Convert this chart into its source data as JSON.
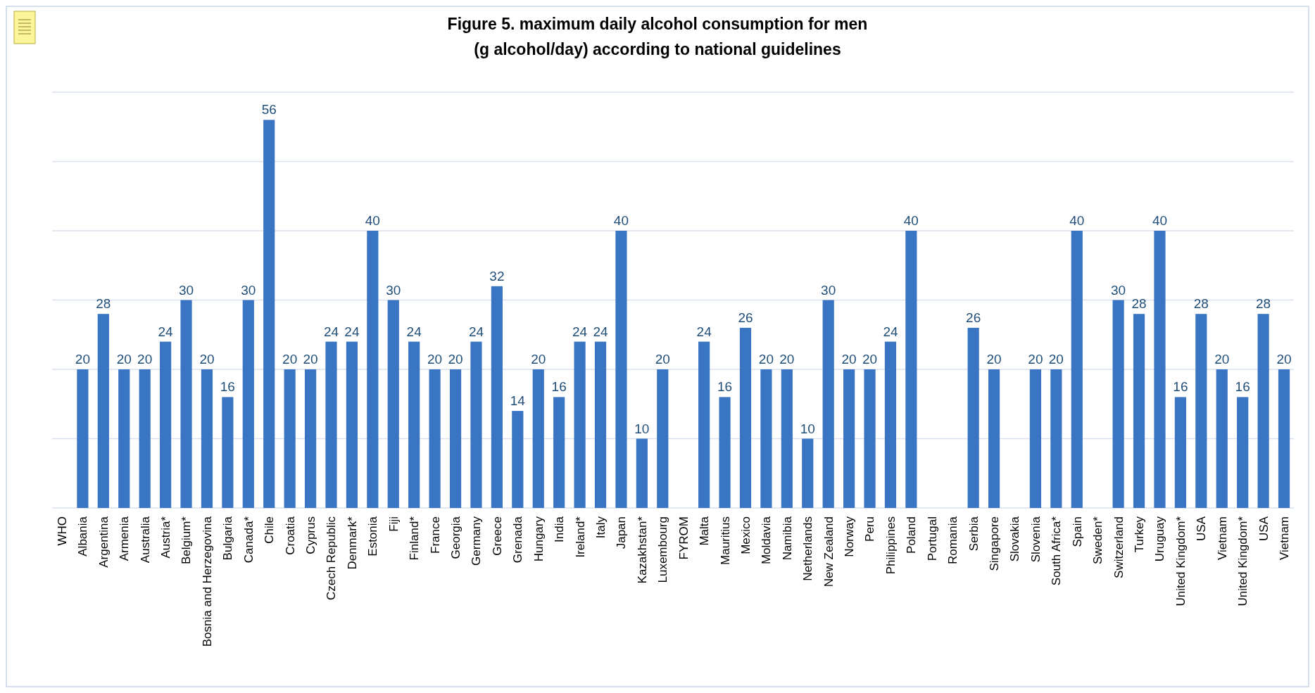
{
  "chart_data": {
    "type": "bar",
    "title": "Figure 5. maximum daily alcohol consumption for men\n(g alcohol/day) according to national guidelines",
    "categories": [
      "WHO",
      "Albania",
      "Argentina",
      "Armenia",
      "Australia",
      "Austria*",
      "Belgium*",
      "Bosnia and Herzegovina",
      "Bulgaria",
      "Canada*",
      "Chile",
      "Croatia",
      "Cyprus",
      "Czech Republic",
      "Denmark*",
      "Estonia",
      "Fiji",
      "Finland*",
      "France",
      "Georgia",
      "Germany",
      "Greece",
      "Grenada",
      "Hungary",
      "India",
      "Ireland*",
      "Italy",
      "Japan",
      "Kazakhstan*",
      "Luxembourg",
      "FYROM",
      "Malta",
      "Mauritius",
      "Mexico",
      "Moldavia",
      "Namibia",
      "Netherlands",
      "New Zealand",
      "Norway",
      "Peru",
      "Philippines",
      "Poland",
      "Portugal",
      "Romania",
      "Serbia",
      "Singapore",
      "Slovakia",
      "Slovenia",
      "South Africa*",
      "Spain",
      "Sweden*",
      "Switzerland",
      "Turkey",
      "Uruguay",
      "United Kingdom*",
      "USA",
      "Vietnam",
      "United Kingdom*",
      "USA",
      "Vietnam"
    ],
    "values": [
      null,
      20,
      28,
      20,
      20,
      24,
      30,
      20,
      16,
      30,
      56,
      20,
      20,
      24,
      24,
      40,
      30,
      24,
      20,
      20,
      24,
      32,
      14,
      20,
      16,
      24,
      24,
      40,
      10,
      20,
      null,
      24,
      16,
      26,
      20,
      20,
      10,
      30,
      20,
      20,
      24,
      40,
      null,
      null,
      26,
      20,
      null,
      20,
      20,
      40,
      null,
      30,
      28,
      40,
      16,
      28,
      20,
      16,
      28,
      20
    ],
    "color": "#3a75c4",
    "data_labels": true,
    "ylim": [
      0,
      60
    ],
    "yticks": [
      {
        "value": 0,
        "label": null
      },
      {
        "value": 10,
        "label": null
      },
      {
        "value": 20,
        "label": null
      },
      {
        "value": 30,
        "label": null
      },
      {
        "value": 40,
        "label": null
      },
      {
        "value": 50,
        "label": null
      },
      {
        "value": 60,
        "label": null
      }
    ],
    "tick_labels": "x",
    "grid": "y"
  }
}
